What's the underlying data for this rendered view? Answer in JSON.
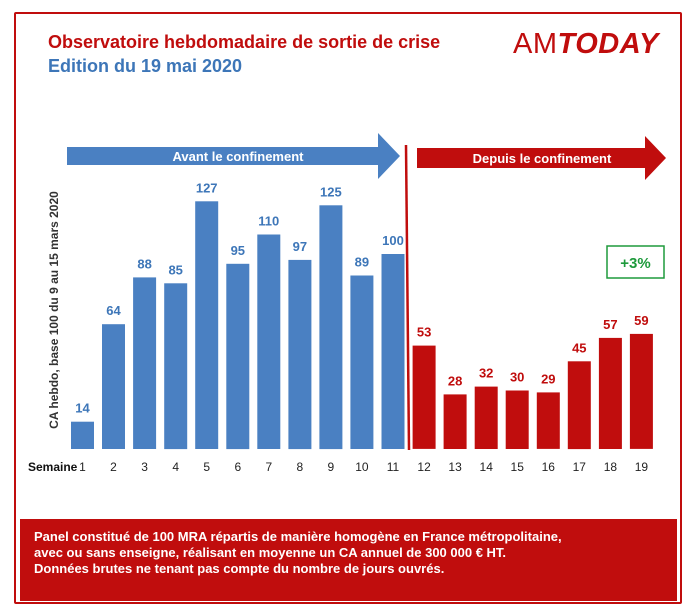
{
  "header": {
    "title": "Observatoire hebdomadaire de sortie de crise",
    "subtitle": "Edition du 19 mai 2020",
    "logo_prefix": "AM",
    "logo_suffix": "TODAY"
  },
  "colors": {
    "blue": "#4a80c2",
    "red": "#c00d0d",
    "label_blue": "#3d76b8",
    "green": "#1e9a3c"
  },
  "chart_data": {
    "type": "bar",
    "categories": [
      "1",
      "2",
      "3",
      "4",
      "5",
      "6",
      "7",
      "8",
      "9",
      "10",
      "11",
      "12",
      "13",
      "14",
      "15",
      "16",
      "17",
      "18",
      "19"
    ],
    "values": [
      14,
      64,
      88,
      85,
      127,
      95,
      110,
      97,
      125,
      89,
      100,
      53,
      28,
      32,
      30,
      29,
      45,
      57,
      59
    ],
    "series_color_split_after_index": 10,
    "ylabel": "CA hebdo, base 100 du 9 au 15 mars 2020",
    "xlabel": "Semaine",
    "ylim": [
      0,
      135
    ],
    "grid": false,
    "annotations": {
      "before_arrow": "Avant le confinement",
      "after_arrow": "Depuis le confinement",
      "badge": "+3%"
    }
  },
  "footer": {
    "lines": [
      "Panel constitué de 100 MRA répartis de manière homogène en France métropolitaine,",
      "avec ou sans enseigne, réalisant en moyenne un CA annuel de 300 000 € HT.",
      "Données brutes ne tenant pas compte du nombre de jours ouvrés."
    ]
  }
}
